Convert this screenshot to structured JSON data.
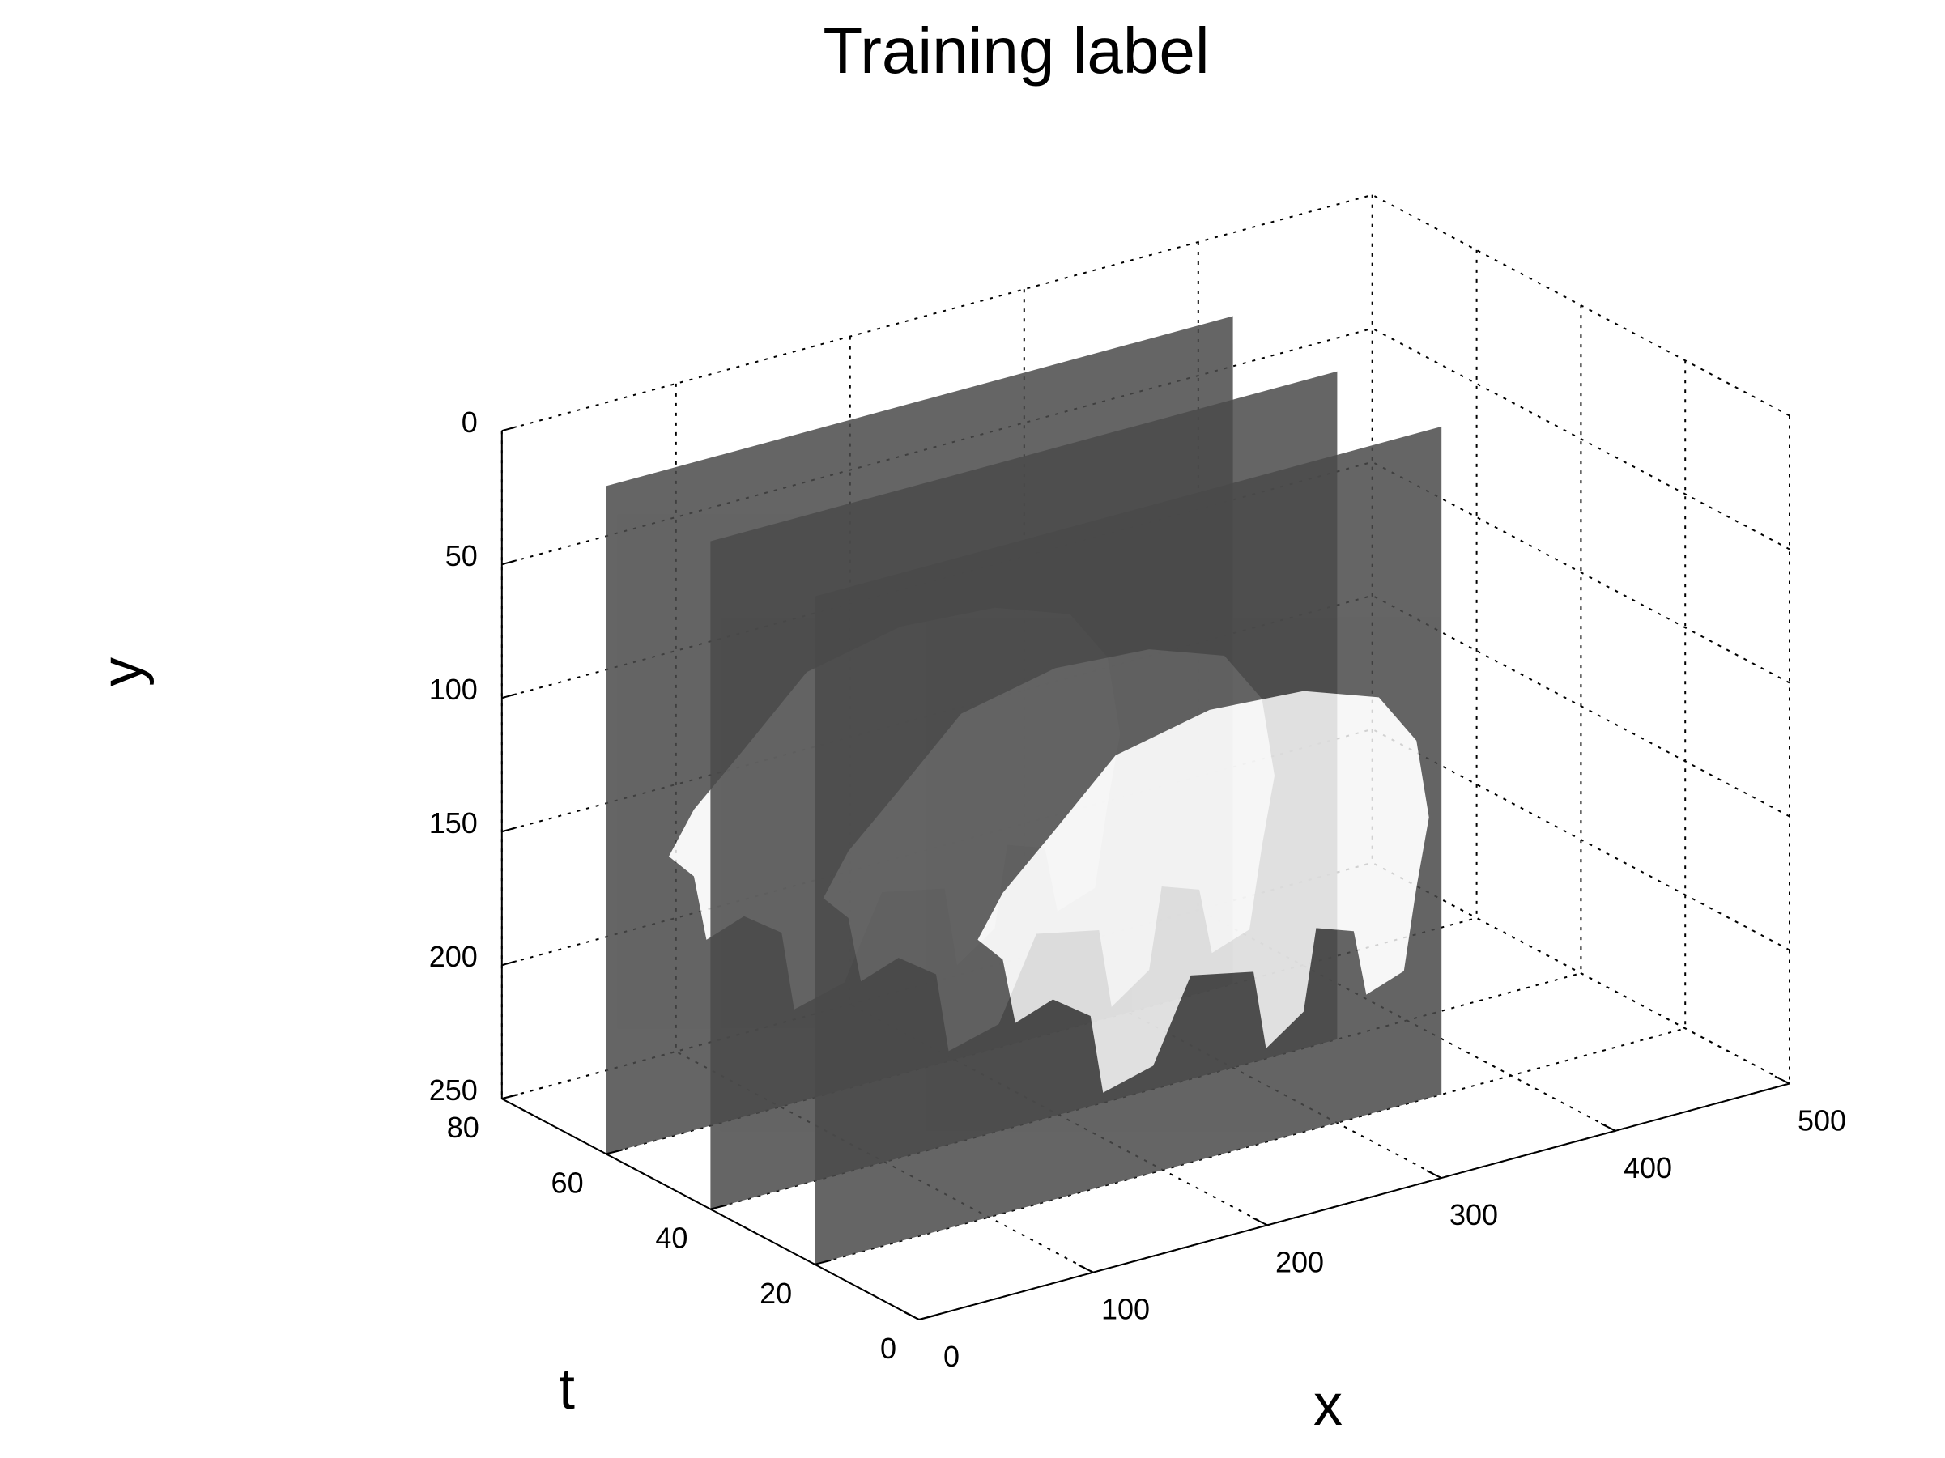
{
  "chart_data": {
    "type": "volume-slices",
    "title": "Training label",
    "xlabel": "x",
    "ylabel": "y",
    "tlabel": "t",
    "x_axis": {
      "range": [
        0,
        500
      ],
      "ticks": [
        "0",
        "100",
        "200",
        "300",
        "400",
        "500"
      ]
    },
    "y_axis": {
      "range": [
        0,
        250
      ],
      "reversed": true,
      "ticks": [
        "0",
        "50",
        "100",
        "150",
        "200",
        "250"
      ]
    },
    "t_axis": {
      "range": [
        0,
        80
      ],
      "ticks": [
        "0",
        "20",
        "40",
        "60",
        "80"
      ]
    },
    "grid": true,
    "colormap": "gray",
    "slices": [
      {
        "t": 60,
        "x_range": [
          0,
          360
        ],
        "y_range": [
          0,
          250
        ]
      },
      {
        "t": 40,
        "x_range": [
          0,
          360
        ],
        "y_range": [
          0,
          250
        ]
      },
      {
        "t": 20,
        "x_range": [
          0,
          360
        ],
        "y_range": [
          0,
          250
        ]
      }
    ],
    "slice_color": "#4a4a4a",
    "foreground_color": "#ffffff",
    "slice_opacity": 0.6
  }
}
